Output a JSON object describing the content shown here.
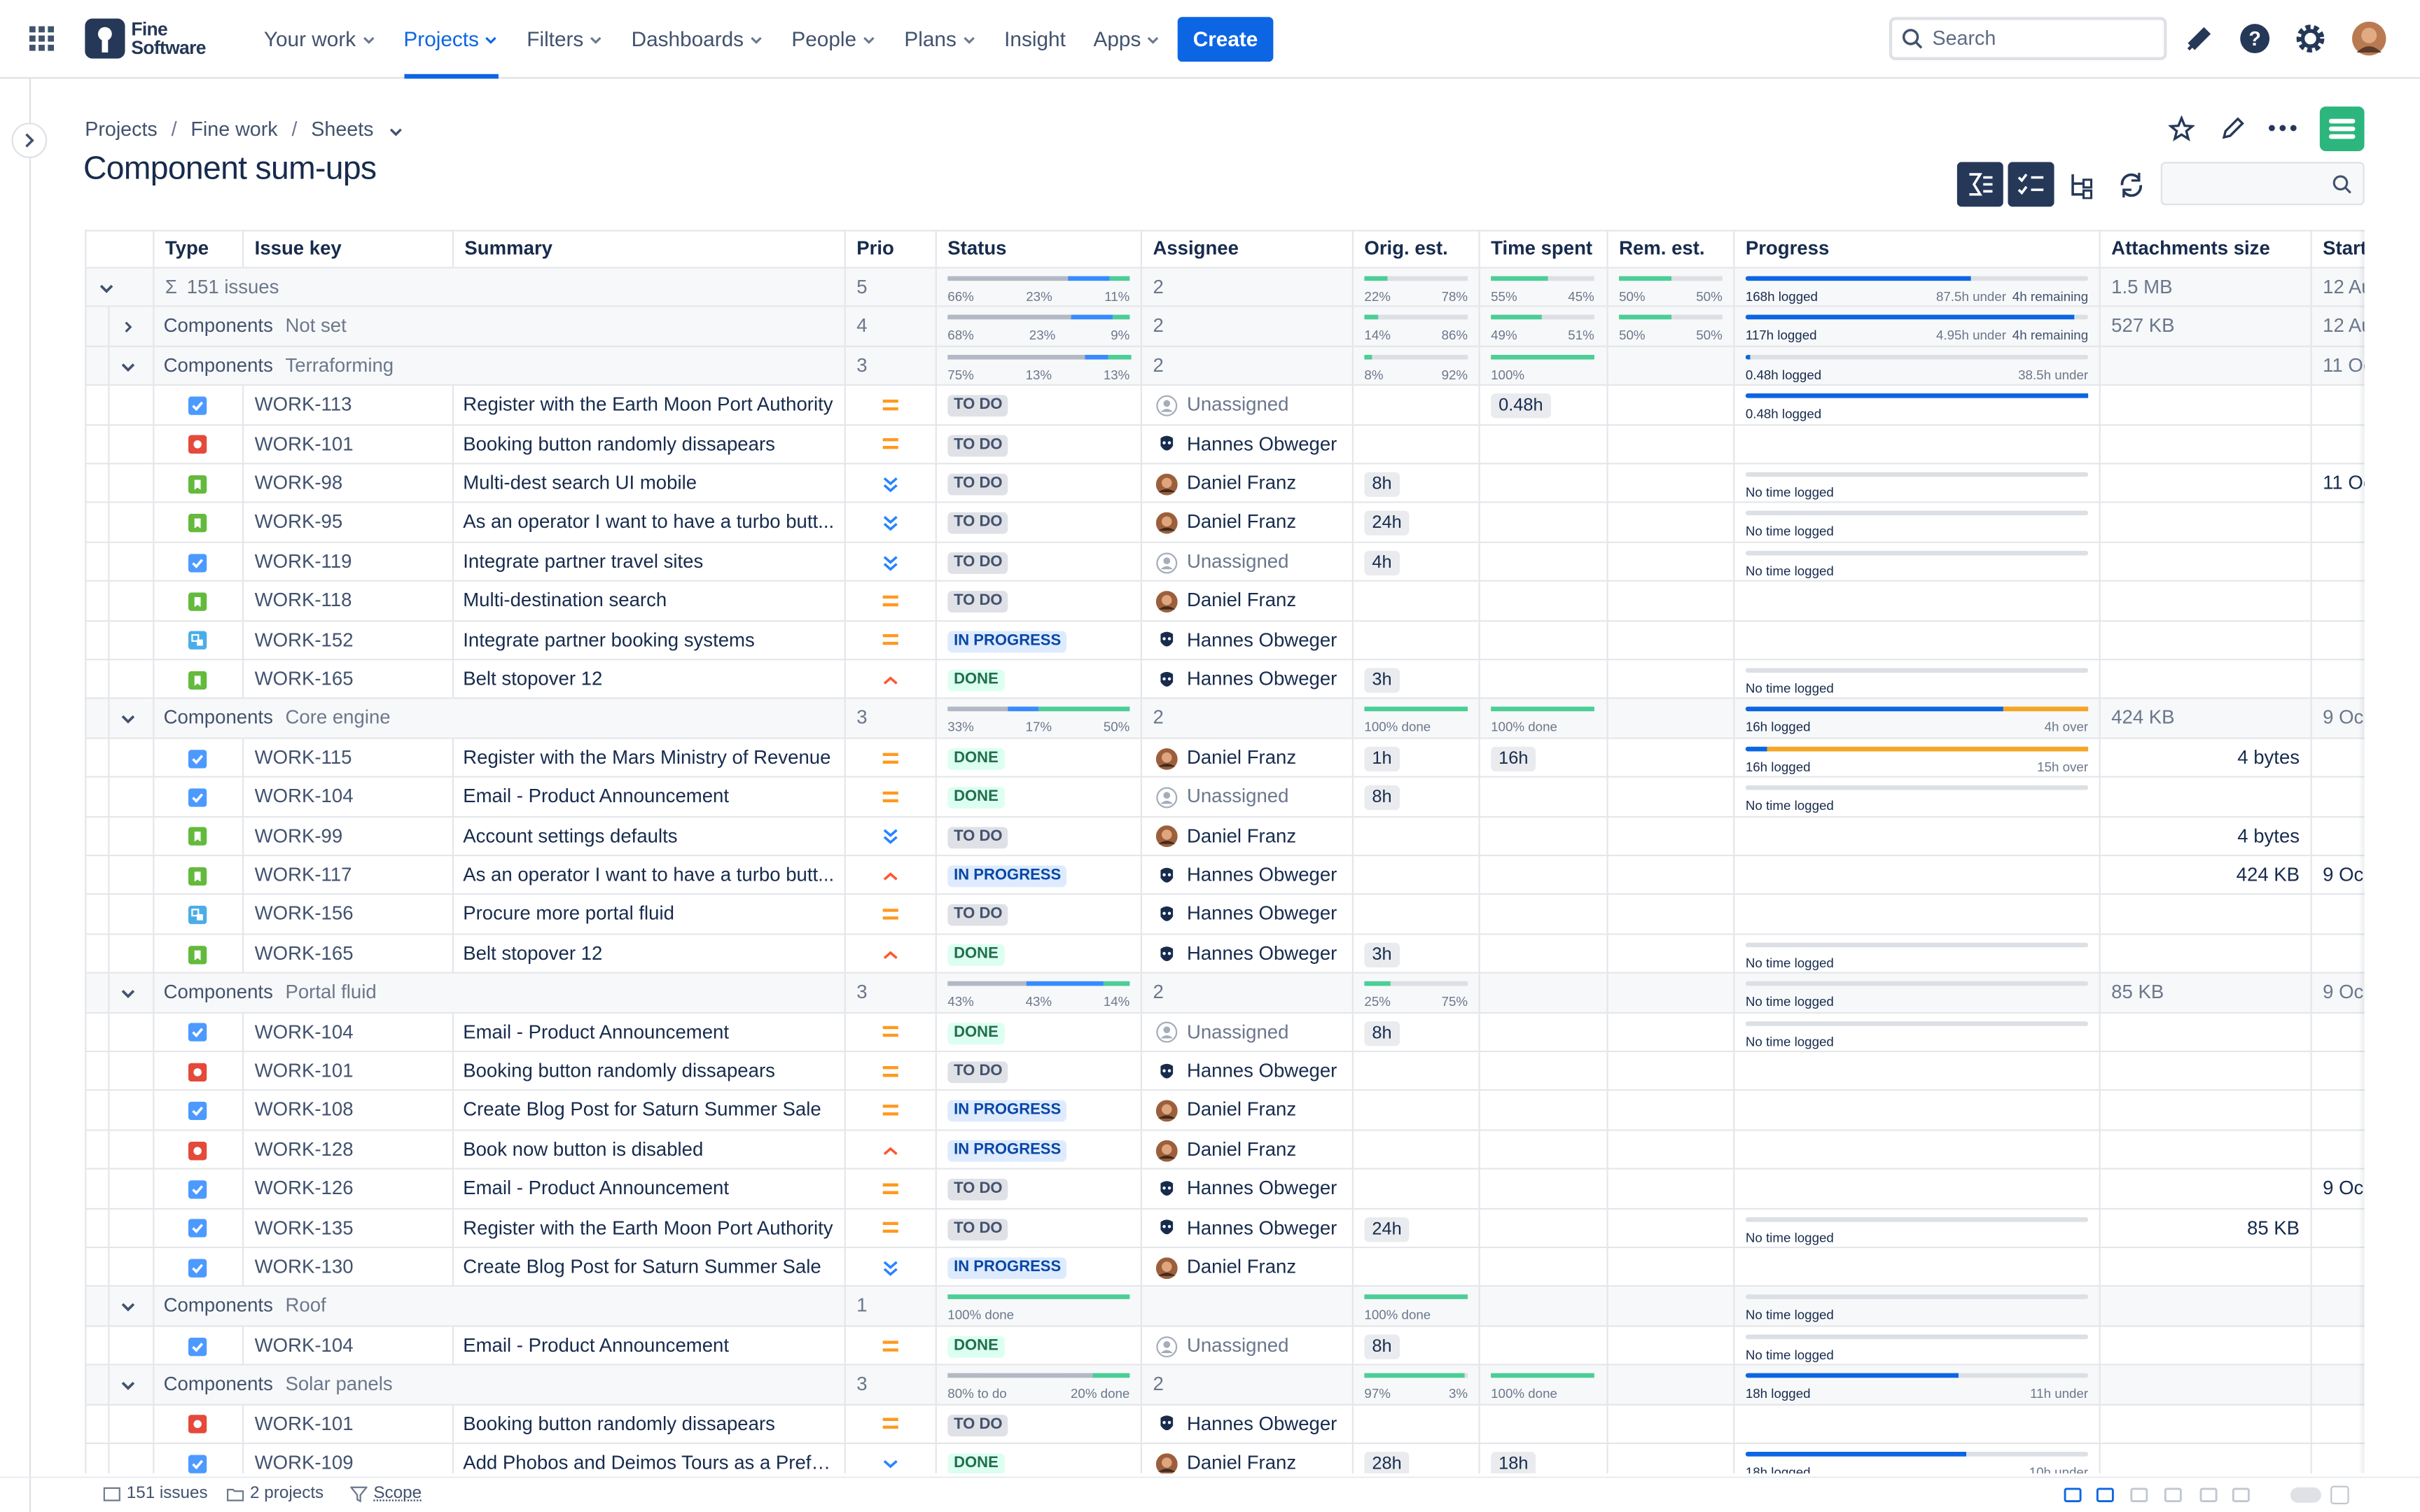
{
  "nav": {
    "logo": [
      "Fine",
      "Software"
    ],
    "items": [
      {
        "label": "Your work",
        "menu": true
      },
      {
        "label": "Projects",
        "menu": true,
        "active": true
      },
      {
        "label": "Filters",
        "menu": true
      },
      {
        "label": "Dashboards",
        "menu": true
      },
      {
        "label": "People",
        "menu": true
      },
      {
        "label": "Plans",
        "menu": true
      },
      {
        "label": "Insight"
      },
      {
        "label": "Apps",
        "menu": true
      }
    ],
    "create": "Create",
    "search": "Search"
  },
  "breadcrumbs": [
    "Projects",
    "Fine work",
    "Sheets"
  ],
  "title": "Component sum-ups",
  "table": {
    "columns": [
      "Type",
      "Issue key",
      "Summary",
      "Prio",
      "Status",
      "Assignee",
      "Orig. est.",
      "Time spent",
      "Rem. est.",
      "Progress",
      "Attachments size",
      "Start"
    ],
    "summary": {
      "icon": "Σ",
      "count": "151 issues",
      "prio": 5,
      "status": [
        "66%",
        "23%",
        "11%"
      ],
      "assignee": 2,
      "orig": [
        "22%",
        "78%"
      ],
      "spent": [
        "55%",
        "45%"
      ],
      "rem": [
        "50%",
        "50%"
      ],
      "progress": {
        "logged": "168h logged",
        "right": "87.5h under",
        "extra": "4h remaining"
      },
      "attachments": "1.5 MB",
      "start": "12 Au"
    },
    "groups": [
      {
        "label": "Components",
        "name": "Not set",
        "collapsed": true,
        "prio": 4,
        "status": [
          "68%",
          "23%",
          "9%"
        ],
        "assignee": 2,
        "orig": [
          "14%",
          "86%"
        ],
        "spent": [
          "49%",
          "51%"
        ],
        "rem": [
          "50%",
          "50%"
        ],
        "progress": {
          "logged": "117h logged",
          "right": "4.95h under",
          "extra": "4h remaining"
        },
        "attachments": "527 KB",
        "start": "12 Au"
      },
      {
        "label": "Components",
        "name": "Terraforming",
        "prio": 3,
        "status": [
          "75%",
          "13%",
          "13%"
        ],
        "assignee": 2,
        "orig": [
          "8%",
          "92%"
        ],
        "spent": [
          "100%"
        ],
        "progress": {
          "logged": "0.48h logged",
          "right": "38.5h under"
        },
        "start": "11 Oc",
        "rows": [
          {
            "type": "task",
            "key": "WORK-113",
            "summary": "Register with the Earth Moon Port Authority",
            "prio": "medium",
            "status": "TO DO",
            "state": "todo",
            "assignee": "Unassigned",
            "avatar": "empty",
            "spent": "0.48h",
            "progress": {
              "logged": "0.48h logged"
            }
          },
          {
            "type": "bug",
            "key": "WORK-101",
            "summary": "Booking button randomly dissapears",
            "prio": "medium",
            "status": "TO DO",
            "state": "todo",
            "assignee": "Hannes Obweger",
            "avatar": "dark"
          },
          {
            "type": "story",
            "key": "WORK-98",
            "summary": "Multi-dest search UI mobile",
            "prio": "lowest",
            "status": "TO DO",
            "state": "todo",
            "assignee": "Daniel Franz",
            "avatar": "photo",
            "orig": "8h",
            "progress": {
              "logged": "No time logged"
            },
            "start": "11 Oc"
          },
          {
            "type": "story",
            "key": "WORK-95",
            "summary": "As an operator I want to have a turbo butt...",
            "prio": "lowest",
            "status": "TO DO",
            "state": "todo",
            "assignee": "Daniel Franz",
            "avatar": "photo",
            "orig": "24h",
            "progress": {
              "logged": "No time logged"
            }
          },
          {
            "type": "task",
            "key": "WORK-119",
            "summary": "Integrate partner travel sites",
            "prio": "lowest",
            "status": "TO DO",
            "state": "todo",
            "assignee": "Unassigned",
            "avatar": "empty",
            "orig": "4h",
            "progress": {
              "logged": "No time logged"
            }
          },
          {
            "type": "story",
            "key": "WORK-118",
            "summary": "Multi-destination search",
            "prio": "medium",
            "status": "TO DO",
            "state": "todo",
            "assignee": "Daniel Franz",
            "avatar": "photo"
          },
          {
            "type": "subtask",
            "key": "WORK-152",
            "summary": "Integrate partner booking systems",
            "prio": "medium",
            "status": "IN PROGRESS",
            "state": "progress",
            "assignee": "Hannes Obweger",
            "avatar": "dark"
          },
          {
            "type": "story",
            "key": "WORK-165",
            "summary": "Belt stopover 12",
            "prio": "high",
            "status": "DONE",
            "state": "done",
            "assignee": "Hannes Obweger",
            "avatar": "dark",
            "orig": "3h",
            "progress": {
              "logged": "No time logged"
            }
          }
        ]
      },
      {
        "label": "Components",
        "name": "Core engine",
        "prio": 3,
        "status": [
          "33%",
          "17%",
          "50%"
        ],
        "assignee": 2,
        "orig": [
          "100% done"
        ],
        "spent": [
          "100% done"
        ],
        "progress": {
          "logged": "16h logged",
          "right": "4h over",
          "over": true
        },
        "attachments": "424 KB",
        "start": "9 Oc",
        "rows": [
          {
            "type": "task",
            "key": "WORK-115",
            "summary": "Register with the Mars Ministry of Revenue",
            "prio": "medium",
            "status": "DONE",
            "state": "done",
            "assignee": "Daniel Franz",
            "avatar": "photo",
            "orig": "1h",
            "spent": "16h",
            "progress": {
              "logged": "16h logged",
              "right": "15h over",
              "over": true
            },
            "attachments": "4 bytes"
          },
          {
            "type": "task",
            "key": "WORK-104",
            "summary": "Email - Product Announcement",
            "prio": "medium",
            "status": "DONE",
            "state": "done",
            "assignee": "Unassigned",
            "avatar": "empty",
            "orig": "8h",
            "progress": {
              "logged": "No time logged"
            }
          },
          {
            "type": "story",
            "key": "WORK-99",
            "summary": "Account settings defaults",
            "prio": "lowest",
            "status": "TO DO",
            "state": "todo",
            "assignee": "Daniel Franz",
            "avatar": "photo",
            "attachments": "4 bytes"
          },
          {
            "type": "story",
            "key": "WORK-117",
            "summary": "As an operator I want to have a turbo butt...",
            "prio": "high",
            "status": "IN PROGRESS",
            "state": "progress",
            "assignee": "Hannes Obweger",
            "avatar": "dark",
            "attachments": "424 KB",
            "start": "9 Oc"
          },
          {
            "type": "subtask",
            "key": "WORK-156",
            "summary": "Procure more portal fluid",
            "prio": "medium",
            "status": "TO DO",
            "state": "todo",
            "assignee": "Hannes Obweger",
            "avatar": "dark"
          },
          {
            "type": "story",
            "key": "WORK-165",
            "summary": "Belt stopover 12",
            "prio": "high",
            "status": "DONE",
            "state": "done",
            "assignee": "Hannes Obweger",
            "avatar": "dark",
            "orig": "3h",
            "progress": {
              "logged": "No time logged"
            }
          }
        ]
      },
      {
        "label": "Components",
        "name": "Portal fluid",
        "prio": 3,
        "status": [
          "43%",
          "43%",
          "14%"
        ],
        "assignee": 2,
        "orig": [
          "25%",
          "75%"
        ],
        "progress": {
          "logged": "No time logged"
        },
        "attachments": "85 KB",
        "start": "9 Oc",
        "rows": [
          {
            "type": "task",
            "key": "WORK-104",
            "summary": "Email - Product Announcement",
            "prio": "medium",
            "status": "DONE",
            "state": "done",
            "assignee": "Unassigned",
            "avatar": "empty",
            "orig": "8h",
            "progress": {
              "logged": "No time logged"
            }
          },
          {
            "type": "bug",
            "key": "WORK-101",
            "summary": "Booking button randomly dissapears",
            "prio": "medium",
            "status": "TO DO",
            "state": "todo",
            "assignee": "Hannes Obweger",
            "avatar": "dark"
          },
          {
            "type": "task",
            "key": "WORK-108",
            "summary": "Create Blog Post for Saturn Summer Sale",
            "prio": "medium",
            "status": "IN PROGRESS",
            "state": "progress",
            "assignee": "Daniel Franz",
            "avatar": "photo"
          },
          {
            "type": "bug",
            "key": "WORK-128",
            "summary": "Book now button is disabled",
            "prio": "high",
            "status": "IN PROGRESS",
            "state": "progress",
            "assignee": "Daniel Franz",
            "avatar": "photo"
          },
          {
            "type": "task",
            "key": "WORK-126",
            "summary": "Email - Product Announcement",
            "prio": "medium",
            "status": "TO DO",
            "state": "todo",
            "assignee": "Hannes Obweger",
            "avatar": "dark",
            "start": "9 Oc"
          },
          {
            "type": "task",
            "key": "WORK-135",
            "summary": "Register with the Earth Moon Port Authority",
            "prio": "medium",
            "status": "TO DO",
            "state": "todo",
            "assignee": "Hannes Obweger",
            "avatar": "dark",
            "orig": "24h",
            "progress": {
              "logged": "No time logged"
            },
            "attachments": "85 KB"
          },
          {
            "type": "task",
            "key": "WORK-130",
            "summary": "Create Blog Post for Saturn Summer Sale",
            "prio": "lowest",
            "status": "IN PROGRESS",
            "state": "progress",
            "assignee": "Daniel Franz",
            "avatar": "photo"
          }
        ]
      },
      {
        "label": "Components",
        "name": "Roof",
        "prio": 1,
        "status": [
          "100% done"
        ],
        "orig": [
          "100% done"
        ],
        "progress": {
          "logged": "No time logged"
        },
        "rows": [
          {
            "type": "task",
            "key": "WORK-104",
            "summary": "Email - Product Announcement",
            "prio": "medium",
            "status": "DONE",
            "state": "done",
            "assignee": "Unassigned",
            "avatar": "empty",
            "orig": "8h",
            "progress": {
              "logged": "No time logged"
            }
          }
        ]
      },
      {
        "label": "Components",
        "name": "Solar panels",
        "prio": 3,
        "status": [
          "80% to do",
          "20% done"
        ],
        "assignee": 2,
        "orig": [
          "97%",
          "3%"
        ],
        "spent": [
          "100% done"
        ],
        "progress": {
          "logged": "18h logged",
          "right": "11h under"
        },
        "rows": [
          {
            "type": "bug",
            "key": "WORK-101",
            "summary": "Booking button randomly dissapears",
            "prio": "medium",
            "status": "TO DO",
            "state": "todo",
            "assignee": "Hannes Obweger",
            "avatar": "dark"
          },
          {
            "type": "task",
            "key": "WORK-109",
            "summary": "Add Phobos and Deimos Tours as a Prefe...",
            "prio": "low",
            "status": "DONE",
            "state": "done",
            "assignee": "Daniel Franz",
            "avatar": "photo",
            "orig": "28h",
            "spent": "18h",
            "progress": {
              "logged": "18h logged",
              "right": "10h under"
            }
          }
        ]
      }
    ]
  },
  "footer": [
    "151 issues",
    "2 projects",
    "Scope"
  ]
}
